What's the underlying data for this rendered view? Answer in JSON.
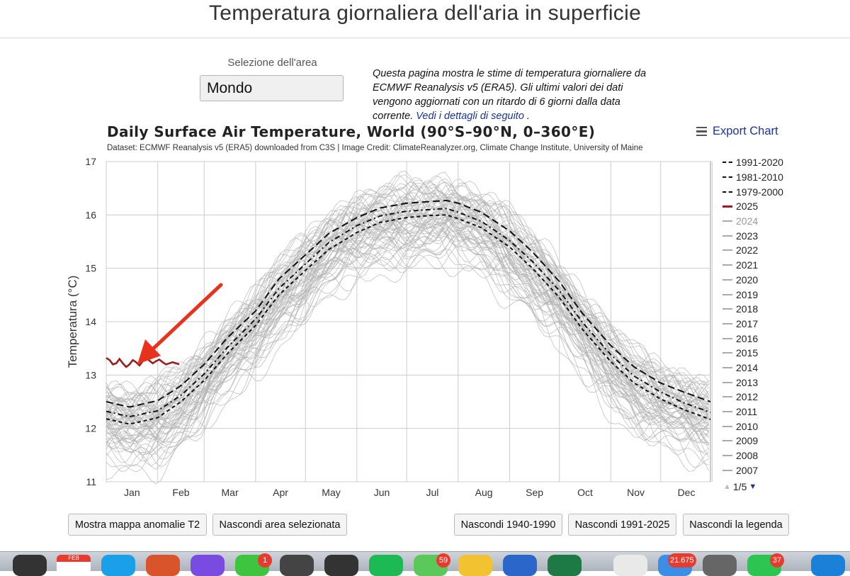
{
  "page": {
    "title": "Temperatura giornaliera dell'aria in superficie",
    "area_label": "Selezione dell'area",
    "area_value": "Mondo",
    "intro_text": "Questa pagina mostra le stime di temperatura giornaliere da ECMWF Reanalysis v5 (ERA5). Gli ultimi valori dei dati vengono aggiornati con un ritardo di 6 giorni dalla data corrente.",
    "intro_link": "Vedi i dettagli di seguito",
    "intro_end": "."
  },
  "chart_header": {
    "title": "Daily Surface Air Temperature, World (90°S–90°N, 0–360°E)",
    "subtitle": "Dataset: ECMWF Reanalysis v5 (ERA5) downloaded from C3S | Image Credit: ClimateReanalyzer.org, Climate Change Institute, University of Maine",
    "export_label": "Export Chart"
  },
  "chart_data": {
    "type": "line",
    "ylabel": "Temperatura (°C)",
    "ylim": [
      11,
      17
    ],
    "yticks": [
      11,
      12,
      13,
      14,
      15,
      16,
      17
    ],
    "x_categories": [
      "Jan",
      "Feb",
      "Mar",
      "Apr",
      "May",
      "Jun",
      "Jul",
      "Aug",
      "Sep",
      "Oct",
      "Nov",
      "Dec"
    ],
    "grid": true,
    "legend_placement": "right",
    "series": [
      {
        "name": "1991-2020",
        "style": "long-dash",
        "color": "#111111",
        "points": [
          [
            1,
            12.5
          ],
          [
            15,
            12.4
          ],
          [
            32,
            12.52
          ],
          [
            46,
            12.8
          ],
          [
            60,
            13.2
          ],
          [
            74,
            13.7
          ],
          [
            91,
            14.2
          ],
          [
            105,
            14.8
          ],
          [
            121,
            15.25
          ],
          [
            135,
            15.65
          ],
          [
            152,
            15.95
          ],
          [
            166,
            16.13
          ],
          [
            182,
            16.22
          ],
          [
            196,
            16.25
          ],
          [
            206,
            16.27
          ],
          [
            213,
            16.22
          ],
          [
            227,
            16.05
          ],
          [
            244,
            15.7
          ],
          [
            258,
            15.3
          ],
          [
            274,
            14.75
          ],
          [
            288,
            14.15
          ],
          [
            305,
            13.55
          ],
          [
            319,
            13.15
          ],
          [
            335,
            12.85
          ],
          [
            349,
            12.68
          ],
          [
            365,
            12.5
          ]
        ]
      },
      {
        "name": "1981-2010",
        "style": "dash-dot",
        "color": "#111111",
        "points": [
          [
            1,
            12.32
          ],
          [
            15,
            12.22
          ],
          [
            32,
            12.33
          ],
          [
            46,
            12.62
          ],
          [
            60,
            13.02
          ],
          [
            74,
            13.52
          ],
          [
            91,
            14.05
          ],
          [
            105,
            14.62
          ],
          [
            121,
            15.08
          ],
          [
            135,
            15.48
          ],
          [
            152,
            15.8
          ],
          [
            166,
            15.98
          ],
          [
            182,
            16.07
          ],
          [
            196,
            16.1
          ],
          [
            206,
            16.12
          ],
          [
            213,
            16.05
          ],
          [
            227,
            15.88
          ],
          [
            244,
            15.52
          ],
          [
            258,
            15.12
          ],
          [
            274,
            14.58
          ],
          [
            288,
            13.98
          ],
          [
            305,
            13.38
          ],
          [
            319,
            12.98
          ],
          [
            335,
            12.68
          ],
          [
            349,
            12.48
          ],
          [
            365,
            12.3
          ]
        ]
      },
      {
        "name": "1979-2000",
        "style": "short-dash",
        "color": "#111111",
        "points": [
          [
            1,
            12.18
          ],
          [
            15,
            12.08
          ],
          [
            32,
            12.2
          ],
          [
            46,
            12.5
          ],
          [
            60,
            12.9
          ],
          [
            74,
            13.4
          ],
          [
            91,
            13.93
          ],
          [
            105,
            14.5
          ],
          [
            121,
            14.96
          ],
          [
            135,
            15.35
          ],
          [
            152,
            15.67
          ],
          [
            166,
            15.86
          ],
          [
            182,
            15.95
          ],
          [
            196,
            15.99
          ],
          [
            206,
            16.0
          ],
          [
            213,
            15.93
          ],
          [
            227,
            15.76
          ],
          [
            244,
            15.4
          ],
          [
            258,
            14.99
          ],
          [
            274,
            14.45
          ],
          [
            288,
            13.85
          ],
          [
            305,
            13.25
          ],
          [
            319,
            12.85
          ],
          [
            335,
            12.55
          ],
          [
            349,
            12.35
          ],
          [
            365,
            12.17
          ]
        ]
      },
      {
        "name": "2025",
        "style": "solid",
        "color": "#9e1b1b",
        "points": [
          [
            1,
            13.32
          ],
          [
            3,
            13.28
          ],
          [
            5,
            13.2
          ],
          [
            7,
            13.22
          ],
          [
            9,
            13.3
          ],
          [
            11,
            13.22
          ],
          [
            13,
            13.15
          ],
          [
            15,
            13.2
          ],
          [
            17,
            13.28
          ],
          [
            19,
            13.24
          ],
          [
            21,
            13.18
          ],
          [
            23,
            13.26
          ],
          [
            25,
            13.32
          ],
          [
            27,
            13.27
          ],
          [
            29,
            13.22
          ],
          [
            31,
            13.26
          ],
          [
            33,
            13.29
          ],
          [
            35,
            13.24
          ],
          [
            37,
            13.2
          ],
          [
            39,
            13.22
          ],
          [
            41,
            13.24
          ],
          [
            43,
            13.22
          ],
          [
            45,
            13.2
          ]
        ]
      },
      {
        "name": "2024",
        "style": "solid",
        "color": "#aaaaaa"
      },
      {
        "name": "2023",
        "style": "solid",
        "color": "#aaaaaa"
      },
      {
        "name": "2022",
        "style": "solid",
        "color": "#aaaaaa"
      },
      {
        "name": "2021",
        "style": "solid",
        "color": "#aaaaaa"
      },
      {
        "name": "2020",
        "style": "solid",
        "color": "#aaaaaa"
      },
      {
        "name": "2019",
        "style": "solid",
        "color": "#aaaaaa"
      },
      {
        "name": "2018",
        "style": "solid",
        "color": "#aaaaaa"
      },
      {
        "name": "2017",
        "style": "solid",
        "color": "#aaaaaa"
      },
      {
        "name": "2016",
        "style": "solid",
        "color": "#aaaaaa"
      },
      {
        "name": "2015",
        "style": "solid",
        "color": "#aaaaaa"
      },
      {
        "name": "2014",
        "style": "solid",
        "color": "#aaaaaa"
      },
      {
        "name": "2013",
        "style": "solid",
        "color": "#aaaaaa"
      },
      {
        "name": "2012",
        "style": "solid",
        "color": "#aaaaaa"
      },
      {
        "name": "2011",
        "style": "solid",
        "color": "#aaaaaa"
      },
      {
        "name": "2010",
        "style": "solid",
        "color": "#aaaaaa"
      },
      {
        "name": "2009",
        "style": "solid",
        "color": "#aaaaaa"
      },
      {
        "name": "2008",
        "style": "solid",
        "color": "#aaaaaa"
      },
      {
        "name": "2007",
        "style": "solid",
        "color": "#aaaaaa"
      }
    ],
    "legend_pager": "1/5"
  },
  "buttons": {
    "show_anomaly_map": "Mostra mappa anomalie T2",
    "hide_selected_area": "Nascondi area selezionata",
    "hide_1940_1990": "Nascondi 1940-1990",
    "hide_1991_2025": "Nascondi 1991-2025",
    "hide_legend": "Nascondi la legenda"
  },
  "dock": {
    "calendar_month": "FEB",
    "badges": [
      "1",
      "59",
      "21.675",
      "37"
    ]
  },
  "colors": {
    "accent_link": "#1a3399",
    "series_2025": "#9e1b1b",
    "annotation_arrow": "#e8321e",
    "grid": "#cccccc"
  }
}
